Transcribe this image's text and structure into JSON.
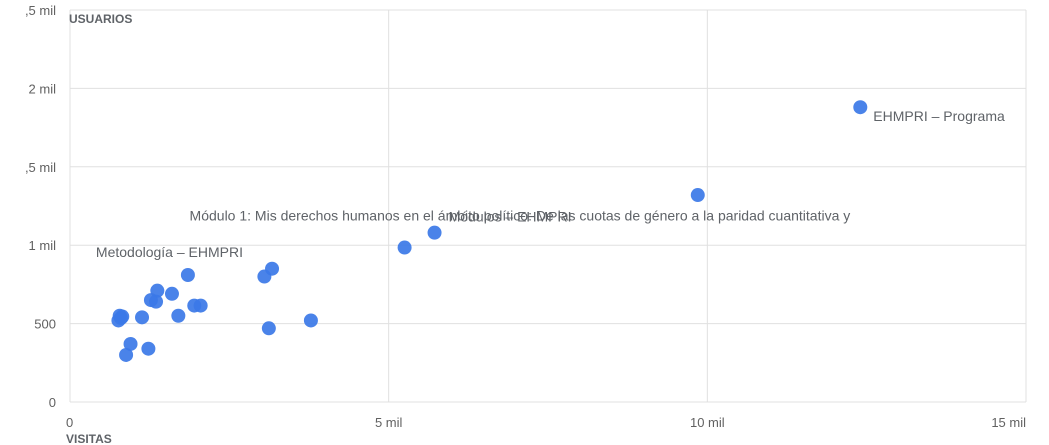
{
  "chart_data": {
    "type": "scatter",
    "title": "",
    "xlabel": "VISITAS",
    "ylabel": "USUARIOS",
    "xlim": [
      0,
      15000
    ],
    "ylim": [
      0,
      2500
    ],
    "grid": true,
    "x_ticks": [
      {
        "value": 0,
        "label": "0"
      },
      {
        "value": 5000,
        "label": "5 mil"
      },
      {
        "value": 10000,
        "label": "10 mil"
      },
      {
        "value": 15000,
        "label": "15 mil"
      }
    ],
    "y_ticks": [
      {
        "value": 0,
        "label": "0"
      },
      {
        "value": 500,
        "label": "500"
      },
      {
        "value": 1000,
        "label": "1 mil"
      },
      {
        "value": 1500,
        "label": ",5 mil"
      },
      {
        "value": 2000,
        "label": "2 mil"
      },
      {
        "value": 2500,
        "label": ",5 mil"
      }
    ],
    "point_color": "#3b78e7",
    "points": [
      {
        "x": 12400,
        "y": 1880,
        "label": "EHMPRI – Programa"
      },
      {
        "x": 9850,
        "y": 1320,
        "label": ""
      },
      {
        "x": 5720,
        "y": 1080,
        "label": "Módulo 1: Mis derechos humanos en el ámbito político: De las cuotas de género a la paridad cuantitativa y"
      },
      {
        "x": 5250,
        "y": 985,
        "label": "Módulos – EHMPRI"
      },
      {
        "x": 3170,
        "y": 850,
        "label": ""
      },
      {
        "x": 3050,
        "y": 800,
        "label": ""
      },
      {
        "x": 1850,
        "y": 810,
        "label": "Metodología – EHMPRI"
      },
      {
        "x": 1370,
        "y": 710,
        "label": ""
      },
      {
        "x": 1600,
        "y": 690,
        "label": ""
      },
      {
        "x": 1270,
        "y": 650,
        "label": ""
      },
      {
        "x": 1350,
        "y": 640,
        "label": ""
      },
      {
        "x": 1950,
        "y": 615,
        "label": ""
      },
      {
        "x": 2050,
        "y": 615,
        "label": ""
      },
      {
        "x": 1700,
        "y": 550,
        "label": ""
      },
      {
        "x": 1130,
        "y": 540,
        "label": ""
      },
      {
        "x": 3780,
        "y": 520,
        "label": ""
      },
      {
        "x": 780,
        "y": 550,
        "label": ""
      },
      {
        "x": 800,
        "y": 535,
        "label": ""
      },
      {
        "x": 760,
        "y": 520,
        "label": ""
      },
      {
        "x": 820,
        "y": 545,
        "label": ""
      },
      {
        "x": 3120,
        "y": 470,
        "label": ""
      },
      {
        "x": 950,
        "y": 370,
        "label": ""
      },
      {
        "x": 1230,
        "y": 340,
        "label": ""
      },
      {
        "x": 880,
        "y": 300,
        "label": ""
      }
    ]
  }
}
